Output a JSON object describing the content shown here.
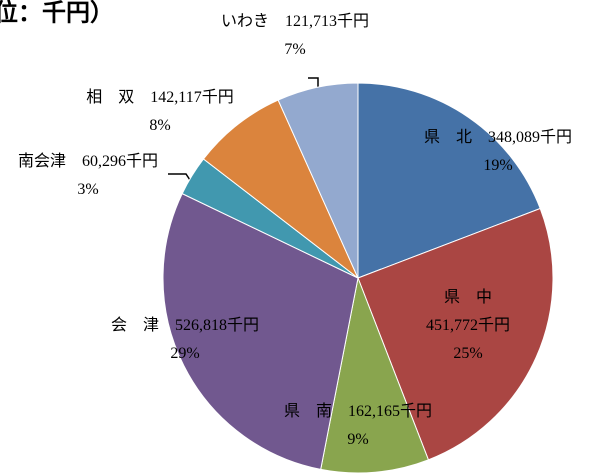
{
  "chart_data": {
    "type": "pie",
    "title": "位：千円）",
    "categories": [
      "県　北",
      "県　中",
      "県　南",
      "会　津",
      "南会津",
      "相　双",
      "いわき"
    ],
    "values": [
      348089,
      451772,
      162165,
      526818,
      60296,
      142117,
      121713
    ],
    "value_labels": [
      "348,089千円",
      "451,772千円",
      "162,165千円",
      "526,818千円",
      "60,296千円",
      "142,117千円",
      "121,713千円"
    ],
    "percent_labels": [
      "19%",
      "25%",
      "9%",
      "29%",
      "3%",
      "8%",
      "7%"
    ],
    "colors": [
      "#4572a7",
      "#aa4643",
      "#89a54e",
      "#71588f",
      "#4198af",
      "#db843d",
      "#93a9cf"
    ]
  }
}
